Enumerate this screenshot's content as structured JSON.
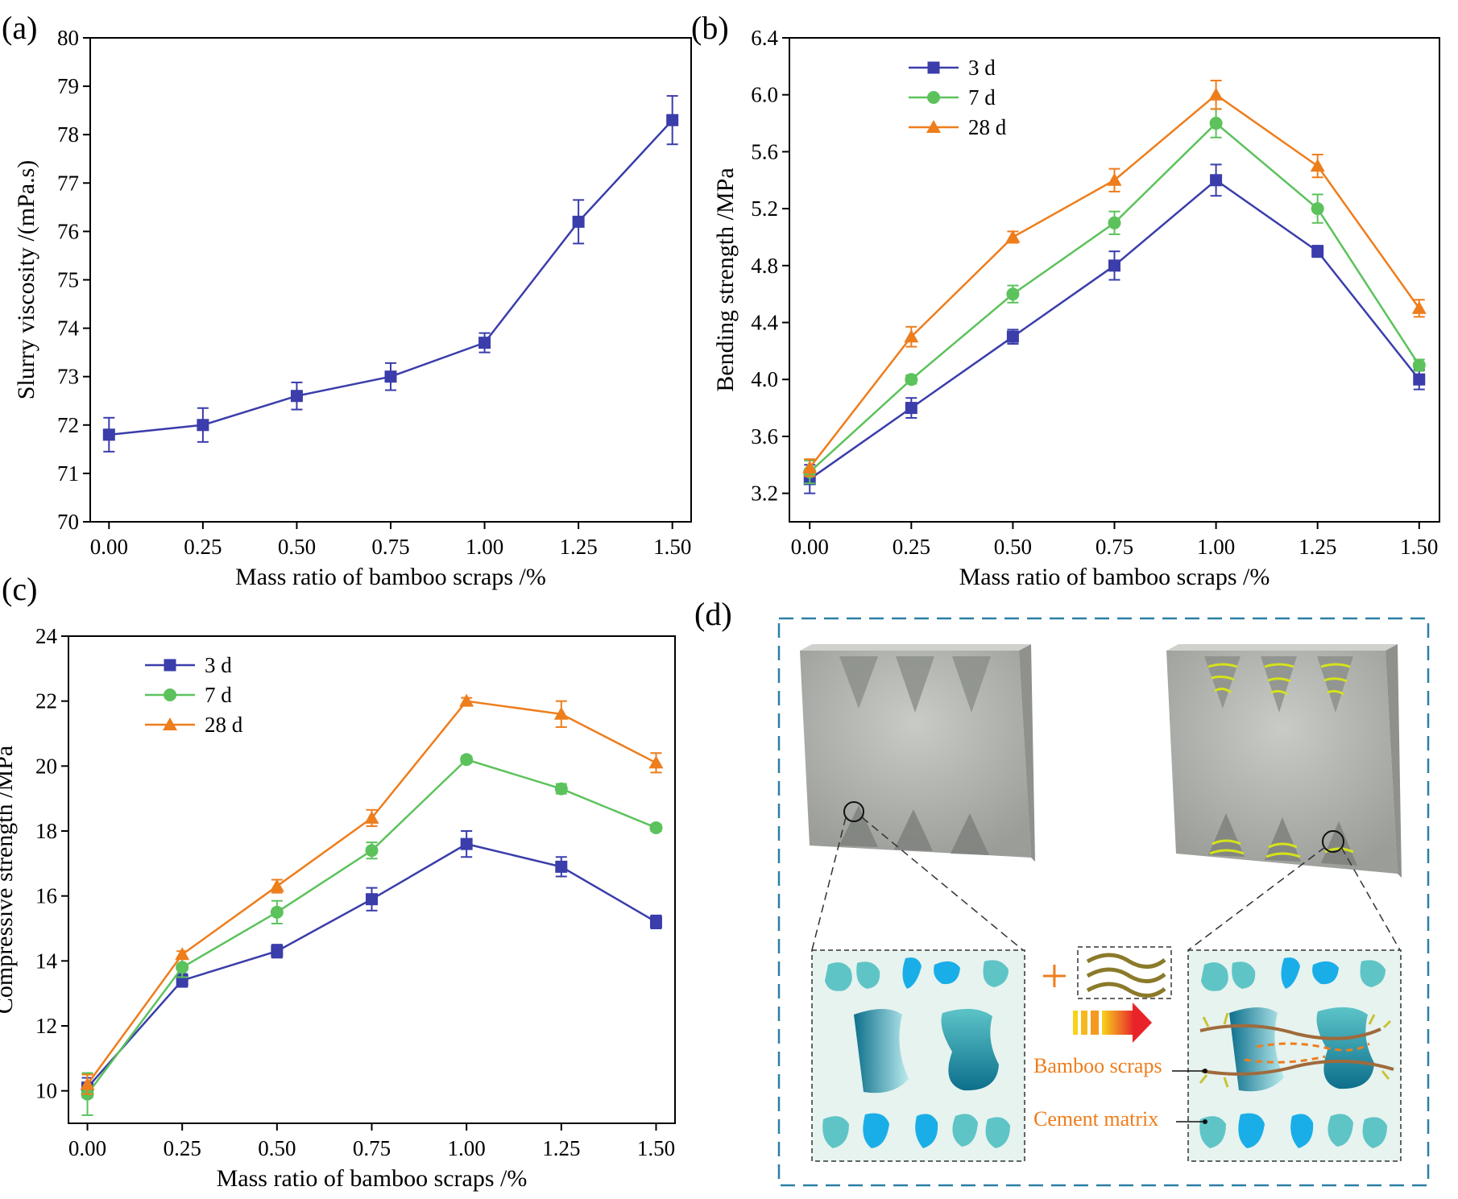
{
  "panel_labels": {
    "a": "(a)",
    "b": "(b)",
    "c": "(c)",
    "d": "(d)"
  },
  "colors": {
    "s3": "#3a3daa",
    "s7": "#5cc25c",
    "s28": "#ee7d1c",
    "axis": "#000000"
  },
  "chart_data": [
    {
      "id": "a",
      "type": "line",
      "title": "",
      "xlabel": "Mass ratio of bamboo scraps /%",
      "ylabel": "Slurry viscosity /(mPa.s)",
      "x": [
        0.0,
        0.25,
        0.5,
        0.75,
        1.0,
        1.25,
        1.5
      ],
      "xticks": [
        "0.00",
        "0.25",
        "0.50",
        "0.75",
        "1.00",
        "1.25",
        "1.50"
      ],
      "xlim": [
        -0.05,
        1.55
      ],
      "ylim": [
        70,
        80
      ],
      "yticks": [
        "70",
        "71",
        "72",
        "73",
        "74",
        "75",
        "76",
        "77",
        "78",
        "79",
        "80"
      ],
      "legend": "",
      "series": [
        {
          "name": "",
          "color": "#3a3daa",
          "marker": "square",
          "values": [
            71.8,
            72.0,
            72.6,
            73.0,
            73.7,
            76.2,
            78.3
          ],
          "errors": [
            0.35,
            0.35,
            0.28,
            0.28,
            0.2,
            0.45,
            0.5
          ]
        }
      ]
    },
    {
      "id": "b",
      "type": "line",
      "title": "",
      "xlabel": "Mass ratio of bamboo scraps /%",
      "ylabel": "Bending strength /MPa",
      "x": [
        0.0,
        0.25,
        0.5,
        0.75,
        1.0,
        1.25,
        1.5
      ],
      "xticks": [
        "0.00",
        "0.25",
        "0.50",
        "0.75",
        "1.00",
        "1.25",
        "1.50"
      ],
      "xlim": [
        -0.05,
        1.55
      ],
      "ylim": [
        3.0,
        6.4
      ],
      "yticks": [
        "3.2",
        "3.6",
        "4.0",
        "4.4",
        "4.8",
        "5.2",
        "5.6",
        "6.0",
        "6.4"
      ],
      "legend": "top-left",
      "series": [
        {
          "name": "3 d",
          "color": "#3a3daa",
          "marker": "square",
          "values": [
            3.3,
            3.8,
            4.3,
            4.8,
            5.4,
            4.9,
            4.0
          ],
          "errors": [
            0.1,
            0.07,
            0.05,
            0.1,
            0.11,
            0.04,
            0.07
          ]
        },
        {
          "name": "7 d",
          "color": "#5cc25c",
          "marker": "circle",
          "values": [
            3.35,
            4.0,
            4.6,
            5.1,
            5.8,
            5.2,
            4.1
          ],
          "errors": [
            0.08,
            0.03,
            0.06,
            0.08,
            0.1,
            0.1,
            0.04
          ]
        },
        {
          "name": "28 d",
          "color": "#ee7d1c",
          "marker": "triangle",
          "values": [
            3.38,
            4.3,
            5.0,
            5.4,
            6.0,
            5.5,
            4.5
          ],
          "errors": [
            0.06,
            0.07,
            0.04,
            0.08,
            0.1,
            0.08,
            0.06
          ]
        }
      ]
    },
    {
      "id": "c",
      "type": "line",
      "title": "",
      "xlabel": "Mass ratio of bamboo scraps /%",
      "ylabel": "Compressive strength /MPa",
      "x": [
        0.0,
        0.25,
        0.5,
        0.75,
        1.0,
        1.25,
        1.5
      ],
      "xticks": [
        "0.00",
        "0.25",
        "0.50",
        "0.75",
        "1.00",
        "1.25",
        "1.50"
      ],
      "xlim": [
        -0.05,
        1.55
      ],
      "ylim": [
        9.0,
        24.0
      ],
      "yticks": [
        "10",
        "12",
        "14",
        "16",
        "18",
        "20",
        "22",
        "24"
      ],
      "legend": "top-left",
      "series": [
        {
          "name": "3 d",
          "color": "#3a3daa",
          "marker": "square",
          "values": [
            10.1,
            13.4,
            14.3,
            15.9,
            17.6,
            16.9,
            15.2
          ],
          "errors": [
            0.3,
            0.2,
            0.2,
            0.35,
            0.4,
            0.3,
            0.2
          ]
        },
        {
          "name": "7 d",
          "color": "#5cc25c",
          "marker": "circle",
          "values": [
            9.9,
            13.8,
            15.5,
            17.4,
            20.2,
            19.3,
            18.1
          ],
          "errors": [
            0.65,
            0.3,
            0.35,
            0.25,
            0.1,
            0.15,
            0.1
          ]
        },
        {
          "name": "28 d",
          "color": "#ee7d1c",
          "marker": "triangle",
          "values": [
            10.2,
            14.2,
            16.3,
            18.4,
            22.0,
            21.6,
            20.1
          ],
          "errors": [
            0.3,
            0.1,
            0.2,
            0.25,
            0.1,
            0.4,
            0.3
          ]
        }
      ]
    }
  ],
  "diagram": {
    "bamboo_label": "Bamboo scraps",
    "cement_label": "Cement matrix",
    "plus_sign": "+"
  }
}
